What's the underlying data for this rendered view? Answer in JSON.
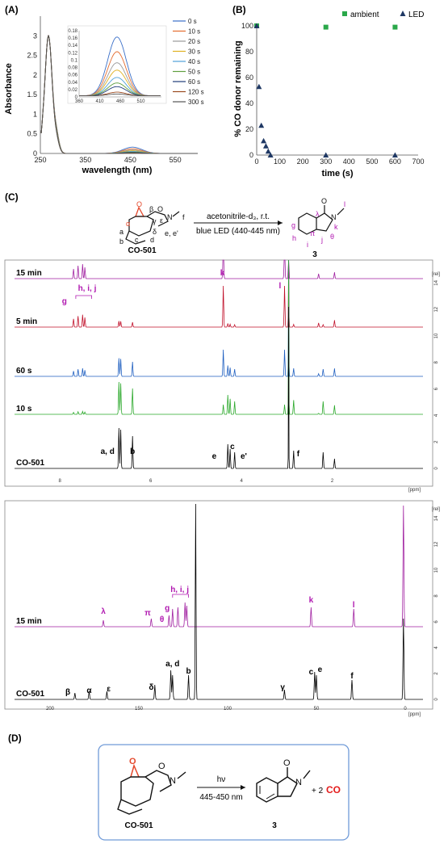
{
  "chart_data": [
    {
      "panel": "(A)",
      "type": "line",
      "xlabel": "wavelength (nm)",
      "ylabel": "Absorbance",
      "xlim": [
        250,
        600
      ],
      "ylim": [
        0,
        3.5
      ],
      "xticks": [
        "250",
        "350",
        "450",
        "550"
      ],
      "yticks": [
        "0",
        "0.5",
        "1",
        "1.5",
        "2",
        "2.5",
        "3"
      ],
      "legend": [
        "0 s",
        "10 s",
        "20 s",
        "30 s",
        "40 s",
        "50 s",
        "60 s",
        "120 s",
        "300 s"
      ],
      "colors": [
        "#3a6fc8",
        "#e46c2f",
        "#9a9a9a",
        "#e0b020",
        "#4fa0d8",
        "#60a040",
        "#1f3c78",
        "#9a4a20",
        "#555555"
      ],
      "visible_peak_450": [
        0.16,
        0.12,
        0.09,
        0.07,
        0.05,
        0.035,
        0.025,
        0.01,
        0.005
      ],
      "inset": {
        "xticks": [
          "360",
          "410",
          "460",
          "510"
        ],
        "yticks": [
          "0",
          "0.02",
          "0.04",
          "0.06",
          "0.08",
          "0.1",
          "0.12",
          "0.14",
          "0.16",
          "0.18"
        ]
      }
    },
    {
      "panel": "(B)",
      "type": "scatter",
      "xlabel": "time (s)",
      "ylabel": "% CO donor remaining",
      "xlim": [
        0,
        700
      ],
      "ylim": [
        0,
        100
      ],
      "xticks": [
        "0",
        "100",
        "200",
        "300",
        "400",
        "500",
        "600",
        "700"
      ],
      "yticks": [
        "0",
        "20",
        "40",
        "60",
        "80",
        "100"
      ],
      "series": [
        {
          "name": "ambient",
          "color": "#2aa84a",
          "marker": "square",
          "x": [
            0,
            300,
            600
          ],
          "y": [
            100,
            99,
            99
          ]
        },
        {
          "name": "LED",
          "color": "#1f3864",
          "marker": "triangle",
          "x": [
            0,
            10,
            20,
            30,
            40,
            50,
            60,
            300,
            600
          ],
          "y": [
            100,
            53,
            23,
            11,
            7,
            3,
            0,
            0,
            0
          ]
        }
      ]
    },
    {
      "panel": "(C)",
      "type": "line",
      "subtype": "1H NMR stack",
      "xlabel": "[ppm]",
      "ylabel": "[rel]",
      "xticks": [
        "8",
        "6",
        "4",
        "2"
      ],
      "yticks": [
        "0",
        "2",
        "4",
        "6",
        "8",
        "10",
        "12",
        "14"
      ],
      "traces": [
        {
          "name": "15 min",
          "color": "#a01fa0"
        },
        {
          "name": "5 min",
          "color": "#c0102a"
        },
        {
          "name": "60 s",
          "color": "#1f5fc0"
        },
        {
          "name": "10 s",
          "color": "#2aa82a"
        },
        {
          "name": "CO-501",
          "color": "#000000"
        }
      ],
      "annotations": [
        "g",
        "h, i, j",
        "k",
        "l",
        "a, d",
        "b",
        "e",
        "c",
        "e'",
        "f"
      ]
    },
    {
      "type": "line",
      "subtype": "13C NMR stack",
      "xlabel": "[ppm]",
      "ylabel": "[rel]",
      "xticks": [
        "200",
        "150",
        "100",
        "50",
        "0"
      ],
      "yticks": [
        "0",
        "2",
        "4",
        "6",
        "8",
        "10",
        "12",
        "14"
      ],
      "traces": [
        {
          "name": "15 min",
          "color": "#a01fa0"
        },
        {
          "name": "CO-501",
          "color": "#000000"
        }
      ],
      "annotations": [
        "λ",
        "π",
        "θ",
        "g",
        "h, i, j",
        "k",
        "l",
        "β",
        "α",
        "ε",
        "δ",
        "a, d",
        "b",
        "γ",
        "c",
        "e",
        "f"
      ]
    }
  ],
  "scheme_c": {
    "reagents": "acetonitrile-d₃, r.t.",
    "conditions": "blue LED (440-445 nm)",
    "reactant": "CO-501",
    "product": "3",
    "atom_labels": [
      "α",
      "β",
      "γ",
      "δ",
      "ε",
      "a",
      "b",
      "c",
      "d",
      "e, e'",
      "f",
      "λ",
      "π",
      "θ",
      "g",
      "h",
      "i",
      "j",
      "k",
      "l"
    ],
    "n_label": "N",
    "o_label": "O"
  },
  "scheme_d": {
    "panel": "(D)",
    "hv": "hν",
    "wavelength": "445-450 nm",
    "reactant": "CO-501",
    "product": "3",
    "byproduct_coef": "+ 2",
    "byproduct": "CO",
    "n_label": "N",
    "o_label": "O"
  }
}
